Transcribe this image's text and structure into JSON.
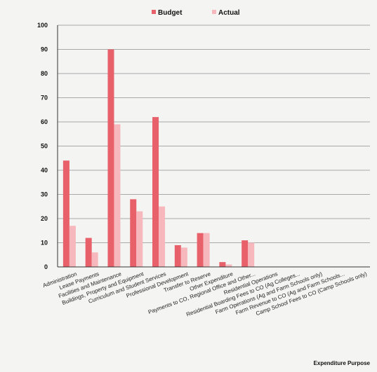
{
  "chart_data": {
    "type": "bar",
    "title": "",
    "xlabel": "Expenditure Purpose",
    "ylabel": "",
    "ylim": [
      0,
      100
    ],
    "yticks": [
      0,
      10,
      20,
      30,
      40,
      50,
      60,
      70,
      80,
      90,
      100
    ],
    "grid": true,
    "legend_position": "top",
    "categories": [
      "Administration",
      "Lease Payments",
      "Facilities and Maintenance",
      "Buildings, Property and Equipment",
      "Curriculum and Student Services",
      "Professional Development",
      "Transfer to Reserve",
      "Other Expenditure",
      "Payments to CO, Regional Office and Other...",
      "Residential Operations",
      "Residential Boarding Fees to CO (Ag Colleges...",
      "Farm Operations (Ag and Farm Schools only)",
      "Farm Revenue to CO (Ag and Farm Schools...",
      "Camp School Fees to CO (Camp Schools only)"
    ],
    "series": [
      {
        "name": "Budget",
        "color": "#e8606a",
        "values": [
          44,
          12,
          90,
          28,
          62,
          9,
          14,
          2,
          11,
          0,
          0,
          0,
          0,
          0
        ]
      },
      {
        "name": "Actual",
        "color": "#f6b8bc",
        "values": [
          17,
          6,
          59,
          23,
          25,
          8,
          14,
          1,
          10,
          0,
          0,
          0,
          0,
          0
        ]
      }
    ]
  }
}
